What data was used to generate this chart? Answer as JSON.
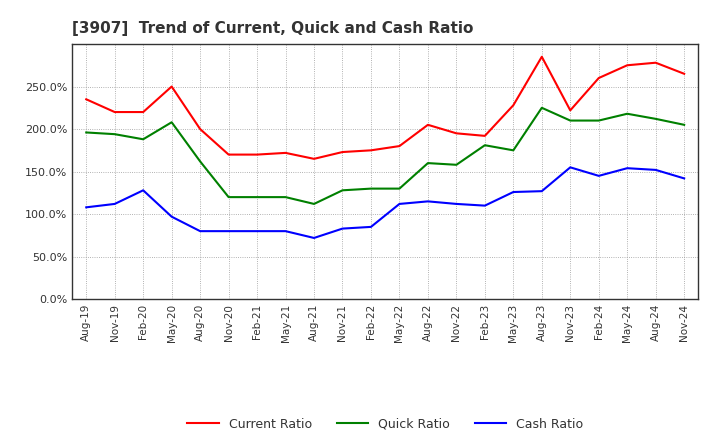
{
  "title": "[3907]  Trend of Current, Quick and Cash Ratio",
  "x_labels": [
    "Aug-19",
    "Nov-19",
    "Feb-20",
    "May-20",
    "Aug-20",
    "Nov-20",
    "Feb-21",
    "May-21",
    "Aug-21",
    "Nov-21",
    "Feb-22",
    "May-22",
    "Aug-22",
    "Nov-22",
    "Feb-23",
    "May-23",
    "Aug-23",
    "Nov-23",
    "Feb-24",
    "May-24",
    "Aug-24",
    "Nov-24"
  ],
  "current_ratio": [
    235,
    220,
    220,
    250,
    200,
    170,
    170,
    172,
    165,
    173,
    175,
    180,
    205,
    195,
    192,
    228,
    285,
    222,
    260,
    275,
    278,
    265
  ],
  "quick_ratio": [
    196,
    194,
    188,
    208,
    162,
    120,
    120,
    120,
    112,
    128,
    130,
    130,
    160,
    158,
    181,
    175,
    225,
    210,
    210,
    218,
    212,
    205
  ],
  "cash_ratio": [
    108,
    112,
    128,
    97,
    80,
    80,
    80,
    80,
    72,
    83,
    85,
    112,
    115,
    112,
    110,
    126,
    127,
    155,
    145,
    154,
    152,
    142
  ],
  "current_color": "#FF0000",
  "quick_color": "#008000",
  "cash_color": "#0000FF",
  "ylim": [
    0,
    300
  ],
  "yticks": [
    0,
    50,
    100,
    150,
    200,
    250
  ],
  "background_color": "#FFFFFF",
  "grid_color": "#999999",
  "title_color": "#333333",
  "legend_labels": [
    "Current Ratio",
    "Quick Ratio",
    "Cash Ratio"
  ]
}
